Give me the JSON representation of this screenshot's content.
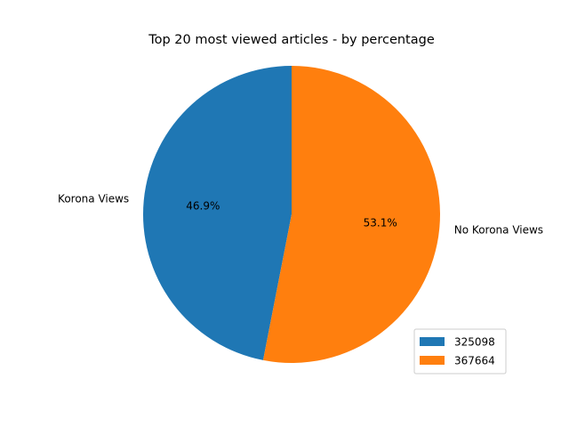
{
  "chart_data": {
    "type": "pie",
    "title": "Top 20 most viewed articles - by percentage",
    "slices": [
      {
        "label": "Korona Views",
        "value": 325098,
        "percent_label": "46.9%",
        "legend_label": "325098",
        "color": "#1f77b4"
      },
      {
        "label": "No Korona Views",
        "value": 367664,
        "percent_label": "53.1%",
        "legend_label": "367664",
        "color": "#ff7f0e"
      }
    ],
    "start_angle_deg": 90,
    "direction": "counterclockwise",
    "legend": {
      "placement": "lower-right",
      "entries": [
        "325098",
        "367664"
      ]
    }
  }
}
